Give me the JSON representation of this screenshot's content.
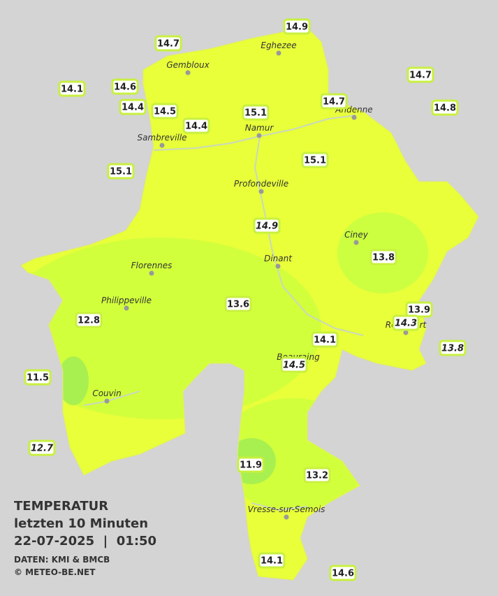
{
  "title": [
    "TEMPERATUR",
    "letzten 10 Minuten",
    "22-07-2025  |  01:50"
  ],
  "credits": [
    "DATEN: KMI & BMCB",
    "© METEO-BE.NET"
  ],
  "cities": [
    "Eghezee",
    "Gembloux",
    "Andenne",
    "Namur",
    "Sambreville",
    "Profondeville",
    "Ciney",
    "Dinant",
    "Florennes",
    "Philippeville",
    "Rochefort",
    "Beauraing",
    "Couvin",
    "Vresse-sur-Semois"
  ],
  "stations": [
    {
      "value": 14.9
    },
    {
      "value": 14.7
    },
    {
      "value": 14.1
    },
    {
      "value": 14.6
    },
    {
      "value": 14.4
    },
    {
      "value": 14.5
    },
    {
      "value": 14.4
    },
    {
      "value": 15.1
    },
    {
      "value": 14.7
    },
    {
      "value": 14.7
    },
    {
      "value": 14.8
    },
    {
      "value": 15.1
    },
    {
      "value": 15.1
    },
    {
      "value": 14.9,
      "italic": true
    },
    {
      "value": 13.8
    },
    {
      "value": 13.6
    },
    {
      "value": 12.8
    },
    {
      "value": 13.9
    },
    {
      "value": 14.3,
      "italic": true
    },
    {
      "value": 13.8,
      "italic": true
    },
    {
      "value": 14.1
    },
    {
      "value": 14.5,
      "italic": true
    },
    {
      "value": 11.5
    },
    {
      "value": 12.7,
      "italic": true
    },
    {
      "value": 11.9
    },
    {
      "value": 13.2
    },
    {
      "value": 14.1
    },
    {
      "value": 14.6
    }
  ]
}
